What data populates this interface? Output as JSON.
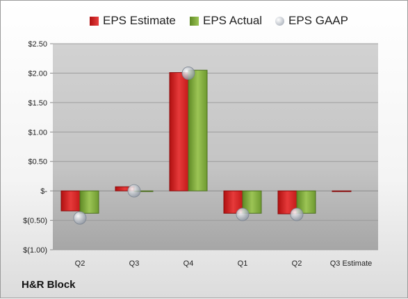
{
  "chart_data": {
    "type": "bar",
    "categories": [
      "Q2",
      "Q3",
      "Q4",
      "Q1",
      "Q2",
      "Q3 Estimate"
    ],
    "series": [
      {
        "name": "EPS Estimate",
        "values": [
          -0.34,
          0.07,
          2.01,
          -0.38,
          -0.39,
          -0.01
        ]
      },
      {
        "name": "EPS Actual",
        "values": [
          -0.38,
          -0.01,
          2.05,
          -0.38,
          -0.38,
          null
        ]
      },
      {
        "name": "EPS GAAP",
        "values": [
          -0.46,
          0.0,
          2.0,
          -0.4,
          -0.4,
          null
        ]
      }
    ],
    "series_types": [
      "bar",
      "bar",
      "marker"
    ],
    "ylim": [
      -1.0,
      2.5
    ],
    "yticks": [
      -1.0,
      -0.5,
      0,
      0.5,
      1.0,
      1.5,
      2.0,
      2.5
    ],
    "ytick_labels": [
      "$(1.00)",
      "$(0.50)",
      "$-",
      "$0.50",
      "$1.00",
      "$1.50",
      "$2.00",
      "$2.50"
    ],
    "title": "",
    "xlabel": "",
    "ylabel": "",
    "grid": true,
    "legend_position": "top",
    "colors": {
      "estimate": "#d42020",
      "actual": "#7aa33a",
      "gaap": "#b0b6c0",
      "plot_background": "#c8c8c8"
    }
  },
  "legend": {
    "items": [
      {
        "label": "EPS Estimate",
        "icon": "red-square-icon"
      },
      {
        "label": "EPS Actual",
        "icon": "green-square-icon"
      },
      {
        "label": "EPS GAAP",
        "icon": "gray-circle-icon"
      }
    ]
  },
  "company_label": "H&R Block"
}
